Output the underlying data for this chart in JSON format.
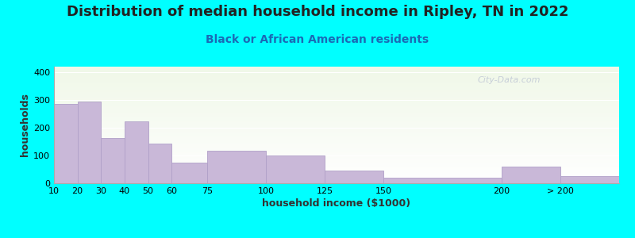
{
  "title": "Distribution of median household income in Ripley, TN in 2022",
  "subtitle": "Black or African American residents",
  "xlabel": "household income ($1000)",
  "ylabel": "households",
  "background_outer": "#00FFFF",
  "bar_color": "#c9b8d8",
  "bar_edge_color": "#b0a0c8",
  "bin_lefts": [
    10,
    20,
    30,
    40,
    50,
    60,
    75,
    100,
    125,
    150,
    200,
    225
  ],
  "bin_widths": [
    10,
    10,
    10,
    10,
    10,
    15,
    25,
    25,
    25,
    50,
    25,
    25
  ],
  "values": [
    285,
    293,
    163,
    222,
    143,
    73,
    118,
    100,
    45,
    20,
    60,
    25
  ],
  "xtick_positions": [
    10,
    20,
    30,
    40,
    50,
    60,
    75,
    100,
    125,
    150,
    200,
    225
  ],
  "xtick_labels": [
    "10",
    "20",
    "30",
    "40",
    "50",
    "60",
    "75",
    "100",
    "125",
    "150",
    "200",
    "> 200"
  ],
  "xlim": [
    10,
    250
  ],
  "ylim": [
    0,
    420
  ],
  "yticks": [
    0,
    100,
    200,
    300,
    400
  ],
  "title_fontsize": 13,
  "subtitle_fontsize": 10,
  "axis_label_fontsize": 9,
  "tick_fontsize": 8,
  "watermark": "City-Data.com"
}
